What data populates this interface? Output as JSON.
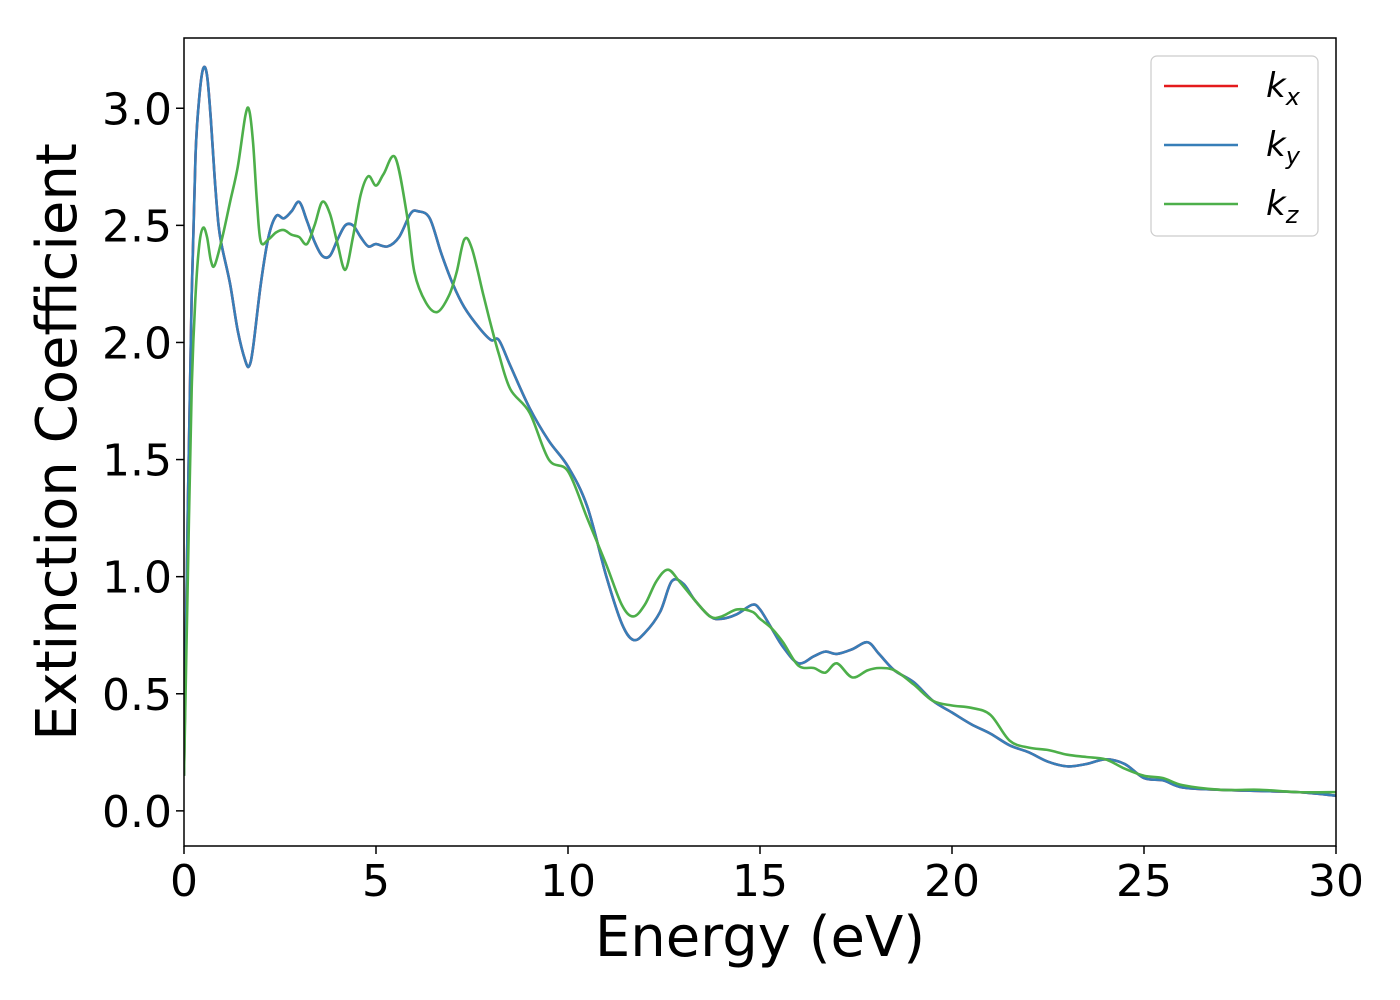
{
  "chart_data": {
    "type": "line",
    "title": "",
    "xlabel": "Energy (eV)",
    "ylabel": "Extinction Coefficient",
    "xlim": [
      0,
      30
    ],
    "ylim": [
      -0.15,
      3.3
    ],
    "xticks": [
      0,
      5,
      10,
      15,
      20,
      25,
      30
    ],
    "xtick_labels": [
      "0",
      "5",
      "10",
      "15",
      "20",
      "25",
      "30"
    ],
    "yticks": [
      0.0,
      0.5,
      1.0,
      1.5,
      2.0,
      2.5,
      3.0
    ],
    "ytick_labels": [
      "0.0",
      "0.5",
      "1.0",
      "1.5",
      "2.0",
      "2.5",
      "3.0"
    ],
    "grid": false,
    "legend_position": "top-right",
    "series": [
      {
        "name": "k_x",
        "legend_main": "k",
        "legend_sub": "x",
        "color": "#e41a1c",
        "x": [
          0,
          0.1,
          0.2,
          0.3,
          0.4,
          0.5,
          0.6,
          0.7,
          0.8,
          0.9,
          1.0,
          1.2,
          1.4,
          1.6,
          1.7,
          1.8,
          2.0,
          2.2,
          2.4,
          2.6,
          2.8,
          3.0,
          3.2,
          3.4,
          3.6,
          3.8,
          4.0,
          4.2,
          4.4,
          4.6,
          4.8,
          5.0,
          5.3,
          5.6,
          5.9,
          6.1,
          6.4,
          6.7,
          7.0,
          7.3,
          7.7,
          8.0,
          8.2,
          8.5,
          9.0,
          9.5,
          10.0,
          10.5,
          11.0,
          11.4,
          11.7,
          12.0,
          12.4,
          12.7,
          13.0,
          13.3,
          13.7,
          14.0,
          14.4,
          14.8,
          15.0,
          15.3,
          15.6,
          16.0,
          16.4,
          16.7,
          17.0,
          17.4,
          17.8,
          18.1,
          18.5,
          19.0,
          19.5,
          20.0,
          20.5,
          21.0,
          21.5,
          22.0,
          22.5,
          23.0,
          23.5,
          24.0,
          24.5,
          25.0,
          25.5,
          26.0,
          27.0,
          28.0,
          29.0,
          30.0
        ],
        "values": [
          0.15,
          1.3,
          2.2,
          2.8,
          3.05,
          3.17,
          3.14,
          2.95,
          2.7,
          2.5,
          2.4,
          2.25,
          2.05,
          1.92,
          1.9,
          1.98,
          2.25,
          2.45,
          2.54,
          2.53,
          2.56,
          2.6,
          2.52,
          2.43,
          2.37,
          2.37,
          2.44,
          2.5,
          2.5,
          2.45,
          2.41,
          2.42,
          2.41,
          2.45,
          2.55,
          2.56,
          2.53,
          2.38,
          2.25,
          2.15,
          2.06,
          2.01,
          2.01,
          1.9,
          1.72,
          1.58,
          1.47,
          1.3,
          1.0,
          0.8,
          0.73,
          0.76,
          0.85,
          0.98,
          0.97,
          0.9,
          0.83,
          0.82,
          0.84,
          0.88,
          0.86,
          0.78,
          0.7,
          0.63,
          0.66,
          0.68,
          0.67,
          0.69,
          0.72,
          0.67,
          0.6,
          0.55,
          0.47,
          0.42,
          0.37,
          0.33,
          0.28,
          0.25,
          0.21,
          0.19,
          0.2,
          0.22,
          0.2,
          0.14,
          0.13,
          0.1,
          0.09,
          0.085,
          0.08,
          0.065
        ]
      },
      {
        "name": "k_y",
        "legend_main": "k",
        "legend_sub": "y",
        "color": "#377eb8",
        "x": [
          0,
          0.1,
          0.2,
          0.3,
          0.4,
          0.5,
          0.6,
          0.7,
          0.8,
          0.9,
          1.0,
          1.2,
          1.4,
          1.6,
          1.7,
          1.8,
          2.0,
          2.2,
          2.4,
          2.6,
          2.8,
          3.0,
          3.2,
          3.4,
          3.6,
          3.8,
          4.0,
          4.2,
          4.4,
          4.6,
          4.8,
          5.0,
          5.3,
          5.6,
          5.9,
          6.1,
          6.4,
          6.7,
          7.0,
          7.3,
          7.7,
          8.0,
          8.2,
          8.5,
          9.0,
          9.5,
          10.0,
          10.5,
          11.0,
          11.4,
          11.7,
          12.0,
          12.4,
          12.7,
          13.0,
          13.3,
          13.7,
          14.0,
          14.4,
          14.8,
          15.0,
          15.3,
          15.6,
          16.0,
          16.4,
          16.7,
          17.0,
          17.4,
          17.8,
          18.1,
          18.5,
          19.0,
          19.5,
          20.0,
          20.5,
          21.0,
          21.5,
          22.0,
          22.5,
          23.0,
          23.5,
          24.0,
          24.5,
          25.0,
          25.5,
          26.0,
          27.0,
          28.0,
          29.0,
          30.0
        ],
        "values": [
          0.15,
          1.3,
          2.2,
          2.8,
          3.05,
          3.17,
          3.14,
          2.95,
          2.7,
          2.5,
          2.4,
          2.25,
          2.05,
          1.92,
          1.9,
          1.98,
          2.25,
          2.45,
          2.54,
          2.53,
          2.56,
          2.6,
          2.52,
          2.43,
          2.37,
          2.37,
          2.44,
          2.5,
          2.5,
          2.45,
          2.41,
          2.42,
          2.41,
          2.45,
          2.55,
          2.56,
          2.53,
          2.38,
          2.25,
          2.15,
          2.06,
          2.01,
          2.01,
          1.9,
          1.72,
          1.58,
          1.47,
          1.3,
          1.0,
          0.8,
          0.73,
          0.76,
          0.85,
          0.98,
          0.97,
          0.9,
          0.83,
          0.82,
          0.84,
          0.88,
          0.86,
          0.78,
          0.7,
          0.63,
          0.66,
          0.68,
          0.67,
          0.69,
          0.72,
          0.67,
          0.6,
          0.55,
          0.47,
          0.42,
          0.37,
          0.33,
          0.28,
          0.25,
          0.21,
          0.19,
          0.2,
          0.22,
          0.2,
          0.14,
          0.13,
          0.1,
          0.09,
          0.085,
          0.08,
          0.065
        ]
      },
      {
        "name": "k_z",
        "legend_main": "k",
        "legend_sub": "z",
        "color": "#4daf4a",
        "x": [
          0,
          0.1,
          0.2,
          0.3,
          0.4,
          0.5,
          0.6,
          0.7,
          0.8,
          1.0,
          1.2,
          1.4,
          1.6,
          1.7,
          1.8,
          1.9,
          2.0,
          2.2,
          2.4,
          2.6,
          2.8,
          3.0,
          3.2,
          3.4,
          3.6,
          3.8,
          4.0,
          4.2,
          4.4,
          4.6,
          4.8,
          5.0,
          5.2,
          5.5,
          5.8,
          6.0,
          6.3,
          6.6,
          6.9,
          7.1,
          7.3,
          7.5,
          7.8,
          8.0,
          8.2,
          8.5,
          9.0,
          9.5,
          10.0,
          10.5,
          11.0,
          11.4,
          11.7,
          12.0,
          12.3,
          12.6,
          12.9,
          13.3,
          13.7,
          14.0,
          14.4,
          14.8,
          15.0,
          15.3,
          15.6,
          16.0,
          16.4,
          16.7,
          17.0,
          17.4,
          17.8,
          18.1,
          18.5,
          19.0,
          19.5,
          20.0,
          20.5,
          21.0,
          21.5,
          22.0,
          22.5,
          23.0,
          23.5,
          24.0,
          24.5,
          25.0,
          25.5,
          26.0,
          27.0,
          28.0,
          29.0,
          30.0
        ],
        "values": [
          0.15,
          1.0,
          1.8,
          2.2,
          2.42,
          2.49,
          2.45,
          2.35,
          2.33,
          2.45,
          2.6,
          2.75,
          2.97,
          2.99,
          2.85,
          2.6,
          2.43,
          2.44,
          2.47,
          2.48,
          2.46,
          2.45,
          2.42,
          2.5,
          2.6,
          2.55,
          2.42,
          2.31,
          2.45,
          2.63,
          2.71,
          2.67,
          2.72,
          2.79,
          2.55,
          2.3,
          2.17,
          2.13,
          2.2,
          2.3,
          2.44,
          2.4,
          2.2,
          2.07,
          1.95,
          1.8,
          1.7,
          1.5,
          1.45,
          1.25,
          1.05,
          0.88,
          0.83,
          0.88,
          0.98,
          1.03,
          0.98,
          0.9,
          0.83,
          0.83,
          0.86,
          0.85,
          0.82,
          0.78,
          0.72,
          0.62,
          0.61,
          0.59,
          0.63,
          0.57,
          0.6,
          0.61,
          0.6,
          0.54,
          0.47,
          0.45,
          0.44,
          0.41,
          0.3,
          0.27,
          0.26,
          0.24,
          0.23,
          0.22,
          0.18,
          0.15,
          0.14,
          0.11,
          0.09,
          0.09,
          0.08,
          0.08
        ]
      }
    ]
  }
}
